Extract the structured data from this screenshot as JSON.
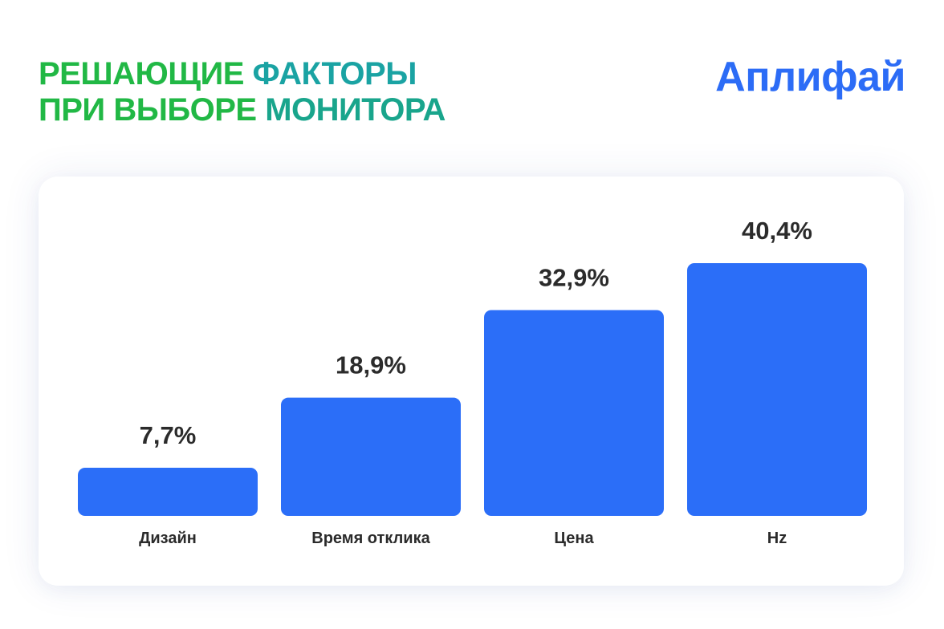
{
  "header": {
    "title_words": [
      {
        "text": "Решающие",
        "color": "#21b845"
      },
      {
        "text": "факторы",
        "color": "#1aa3a3"
      },
      {
        "text": "при",
        "color": "#21b845"
      },
      {
        "text": "выборе",
        "color": "#21b845"
      },
      {
        "text": "монитора",
        "color": "#19a58c"
      }
    ],
    "brand": "Аплифай",
    "brand_color": "#2c6cf6"
  },
  "chart_data": {
    "type": "bar",
    "categories": [
      "Дизайн",
      "Время отклика",
      "Цена",
      "Hz"
    ],
    "values": [
      7.7,
      18.9,
      32.9,
      40.4
    ],
    "value_labels": [
      "7,7%",
      "18,9%",
      "32,9%",
      "40,4%"
    ],
    "title": "",
    "xlabel": "",
    "ylabel": "",
    "ylim": [
      0,
      40.4
    ],
    "grid": false,
    "bar_color": "#2b6ef8",
    "label_color": "#2b2b2b"
  }
}
